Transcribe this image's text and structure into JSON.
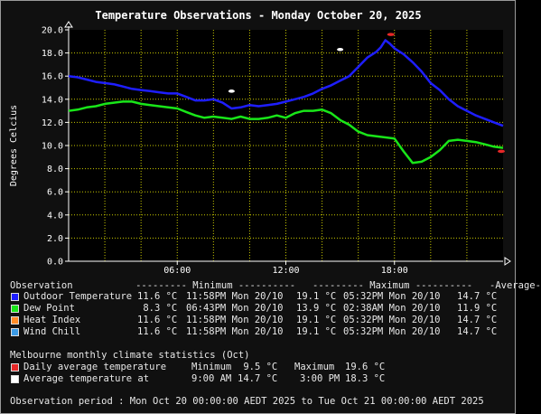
{
  "chart_data": {
    "type": "line",
    "title": "Temperature Observations - Monday October 20, 2025",
    "ylabel": "Degrees Celcius",
    "xlabel": "",
    "x_ticks": [
      "06:00",
      "12:00",
      "18:00"
    ],
    "x_tick_hours": [
      6,
      12,
      18
    ],
    "xlim_hours": [
      0,
      24
    ],
    "ylim": [
      0.0,
      20.0
    ],
    "y_ticks": [
      "0.0",
      "2.0",
      "4.0",
      "6.0",
      "8.0",
      "10.0",
      "12.0",
      "14.0",
      "16.0",
      "18.0",
      "20.0"
    ],
    "grid": true,
    "colors": {
      "plot_background": "#000000",
      "grid": "#c8c800",
      "outdoor": "#1e1eff",
      "dew": "#19e619",
      "heat": "#ff8c28",
      "chill": "#3c9be6",
      "avg_marker": "#ffffff",
      "daily_avg_marker": "#e62828"
    },
    "series": [
      {
        "name": "Outdoor Temperature",
        "x": [
          0,
          0.5,
          1,
          1.5,
          2,
          2.5,
          3,
          3.5,
          4,
          4.5,
          5,
          5.5,
          6,
          6.5,
          7,
          7.5,
          8,
          8.5,
          9,
          9.5,
          10,
          10.5,
          11,
          11.5,
          12,
          12.5,
          13,
          13.5,
          14,
          14.5,
          15,
          15.5,
          16,
          16.5,
          17,
          17.25,
          17.5,
          17.75,
          18,
          18.5,
          19,
          19.5,
          20,
          20.5,
          21,
          21.5,
          22,
          22.5,
          23,
          23.5,
          24
        ],
        "y": [
          16.0,
          15.9,
          15.7,
          15.5,
          15.4,
          15.3,
          15.1,
          14.9,
          14.8,
          14.7,
          14.6,
          14.5,
          14.5,
          14.2,
          13.9,
          13.9,
          14.0,
          13.7,
          13.2,
          13.3,
          13.5,
          13.4,
          13.5,
          13.6,
          13.8,
          14.0,
          14.2,
          14.5,
          14.9,
          15.2,
          15.6,
          16.0,
          16.8,
          17.6,
          18.1,
          18.5,
          19.1,
          18.8,
          18.4,
          17.9,
          17.2,
          16.4,
          15.4,
          14.8,
          14.0,
          13.4,
          13.0,
          12.6,
          12.3,
          12.0,
          11.7
        ]
      },
      {
        "name": "Dew Point",
        "x": [
          0,
          0.5,
          1,
          1.5,
          2,
          2.5,
          3,
          3.5,
          4,
          4.5,
          5,
          5.5,
          6,
          6.5,
          7,
          7.5,
          8,
          8.5,
          9,
          9.5,
          10,
          10.5,
          11,
          11.5,
          12,
          12.5,
          13,
          13.5,
          14,
          14.5,
          15,
          15.5,
          16,
          16.5,
          17,
          17.5,
          18,
          18.5,
          19,
          19.5,
          20,
          20.5,
          21,
          21.5,
          22,
          22.5,
          23,
          23.5,
          24
        ],
        "y": [
          13.0,
          13.1,
          13.3,
          13.4,
          13.6,
          13.7,
          13.8,
          13.8,
          13.6,
          13.5,
          13.4,
          13.3,
          13.2,
          12.9,
          12.6,
          12.4,
          12.5,
          12.4,
          12.3,
          12.5,
          12.3,
          12.3,
          12.4,
          12.6,
          12.4,
          12.8,
          13.0,
          13.0,
          13.1,
          12.8,
          12.2,
          11.8,
          11.2,
          10.9,
          10.8,
          10.7,
          10.6,
          9.5,
          8.5,
          8.6,
          9.0,
          9.6,
          10.4,
          10.5,
          10.4,
          10.3,
          10.1,
          9.9,
          9.8
        ]
      }
    ],
    "min_markers": [
      {
        "series": "Outdoor Temperature",
        "x": 23.9,
        "y": 11.6
      },
      {
        "series": "Dew Point",
        "x": 18.7,
        "y": 8.3
      }
    ],
    "max_markers": [
      {
        "series": "Outdoor Temperature",
        "x": 17.53,
        "y": 19.1
      },
      {
        "series": "Dew Point",
        "x": 2.63,
        "y": 13.9
      }
    ],
    "average_markers": [
      {
        "label": "Average temperature at 9:00 AM",
        "x": 9.0,
        "y": 14.7
      },
      {
        "label": "Average temperature at 3:00 PM",
        "x": 15.0,
        "y": 18.3
      }
    ],
    "daily_average_markers": [
      {
        "label": "Daily average temperature Minimum",
        "x": 23.9,
        "y": 9.5
      },
      {
        "label": "Daily average temperature Maximum",
        "x": 17.8,
        "y": 19.6
      }
    ]
  },
  "table": {
    "header": "Observation           --------- Minimum ----------   --------- Maximum ----------   -Average-",
    "rows": [
      {
        "color_key": "outdoor",
        "label": "Outdoor Temperature",
        "min": "11.6 °C",
        "min_time": "11:58PM Mon 20/10",
        "max": "19.1 °C",
        "max_time": "05:32PM Mon 20/10",
        "avg": "14.7 °C"
      },
      {
        "color_key": "dew",
        "label": "Dew Point",
        "min": " 8.3 °C",
        "min_time": "06:43PM Mon 20/10",
        "max": "13.9 °C",
        "max_time": "02:38AM Mon 20/10",
        "avg": "11.9 °C"
      },
      {
        "color_key": "heat",
        "label": "Heat Index",
        "min": "11.6 °C",
        "min_time": "11:58PM Mon 20/10",
        "max": "19.1 °C",
        "max_time": "05:32PM Mon 20/10",
        "avg": "14.7 °C"
      },
      {
        "color_key": "chill",
        "label": "Wind Chill",
        "min": "11.6 °C",
        "min_time": "11:58PM Mon 20/10",
        "max": "19.1 °C",
        "max_time": "05:32PM Mon 20/10",
        "avg": "14.7 °C"
      }
    ]
  },
  "climate": {
    "title": "Melbourne monthly climate statistics (Oct)",
    "daily": {
      "label": "Daily average temperature",
      "min_label": "Minimum",
      "min": " 9.5 °C",
      "max_label": "Maximum",
      "max": "19.6 °C"
    },
    "average": {
      "label": "Average temperature at",
      "t1": "9:00 AM",
      "v1": "14.7 °C",
      "t2": "3:00 PM",
      "v2": "18.3 °C"
    }
  },
  "footer": "Observation period : Mon Oct 20 00:00:00 AEDT 2025 to Tue Oct 21 00:00:00 AEDT 2025"
}
